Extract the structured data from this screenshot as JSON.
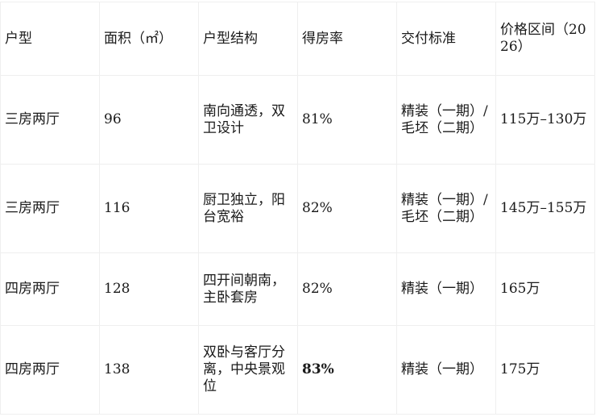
{
  "headers": [
    "户型",
    "面积（㎡）",
    "户型结构",
    "得房率",
    "交付标准",
    "价格区间（2026）"
  ],
  "rows": [
    {
      "type": "三房两厅",
      "area": "96",
      "structure": "南向通透，双卫设计",
      "ratio": "81%",
      "delivery": "精装（一期）/毛坯（二期）",
      "price": "115万–130万"
    },
    {
      "type": "三房两厅",
      "area": "116",
      "structure": "厨卫独立，阳台宽裕",
      "ratio": "82%",
      "delivery": "精装（一期）/毛坯（二期）",
      "price": "145万–155万"
    },
    {
      "type": "四房两厅",
      "area": "128",
      "structure": "四开间朝南，主卧套房",
      "ratio": "82%",
      "delivery": "精装（一期）",
      "price": "165万"
    },
    {
      "type": "四房两厅",
      "area": "138",
      "structure": "双卧与客厅分离，中央景观位",
      "ratio": "83%",
      "delivery": "精装（一期）",
      "price": "175万"
    }
  ]
}
